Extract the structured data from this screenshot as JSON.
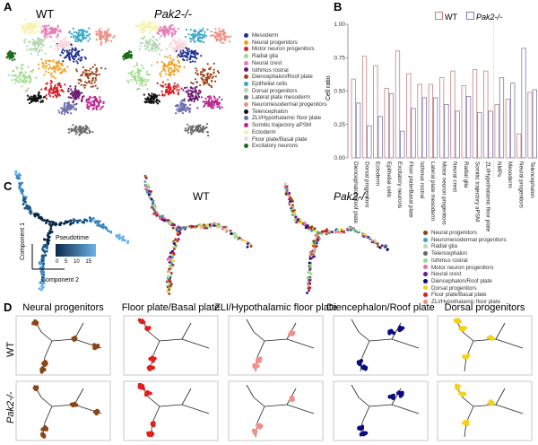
{
  "panels": {
    "a": "A",
    "b": "B",
    "c": "C",
    "d": "D"
  },
  "panelA": {
    "titles": [
      "WT",
      "Pak2-/-"
    ],
    "legend": [
      {
        "label": "Mesoderm",
        "color": "#1f2f8f"
      },
      {
        "label": "Neural progenitors",
        "color": "#f2a024"
      },
      {
        "label": "Motor neuron progenitors",
        "color": "#d62027"
      },
      {
        "label": "Radial glia",
        "color": "#9fdc8a"
      },
      {
        "label": "Neural crest",
        "color": "#e77fb6"
      },
      {
        "label": "Isthmus rostral",
        "color": "#6a1a6b"
      },
      {
        "label": "Diencephalon/Roof plate",
        "color": "#a0461b"
      },
      {
        "label": "Epithelial cells",
        "color": "#3aa7c9"
      },
      {
        "label": "Dorsal progenitors",
        "color": "#b4d8b4"
      },
      {
        "label": "Lateral plate mesoderm",
        "color": "#6b6b6b"
      },
      {
        "label": "Neuromesodermal progenitors",
        "color": "#ee8f86"
      },
      {
        "label": "Telencephalon",
        "color": "#111111"
      },
      {
        "label": "ZLI/Hypothalamic floor plate",
        "color": "#7070b0"
      },
      {
        "label": "Somitic trajectory aPSM",
        "color": "#b8288e"
      },
      {
        "label": "Ectoderm",
        "color": "#f6f2a8"
      },
      {
        "label": "Floor plate/Basal plate",
        "color": "#f9d6dc"
      },
      {
        "label": "Excitatory neurons",
        "color": "#1e6b1e"
      }
    ]
  },
  "chart_data": {
    "type": "bar",
    "title": "",
    "ylabel": "Cell ratio",
    "xlabel": "",
    "ylim": [
      0,
      1
    ],
    "yticks": [
      "0.00",
      "0.25",
      "0.50",
      "0.75",
      "1.00"
    ],
    "legend": [
      "WT",
      "Pak2-/-"
    ],
    "legend_position": "top-left",
    "colors": {
      "WT": "#c98080",
      "Pak2-/-": "#7c7cb4"
    },
    "categories": [
      "Diencephalon/Roof plate",
      "Dorsal progenitors",
      "Ectoderm",
      "Epithelial cells",
      "Excitatory neurons",
      "Floor plate/Basal plate",
      "Isthmus rostral",
      "Lateral plate mesoderm",
      "Motor neuron progenitors",
      "Neural crest",
      "Radial glia",
      "Somitic trajectory aPSM",
      "ZLI/Hypothalamic floor plate",
      "NMPs",
      "Mesoderm",
      "Neural progenitors",
      "Telencephalon"
    ],
    "series": [
      {
        "name": "WT",
        "values": [
          0.59,
          0.76,
          0.69,
          0.52,
          0.8,
          0.63,
          0.55,
          0.55,
          0.6,
          0.65,
          0.54,
          0.66,
          0.65,
          0.4,
          0.44,
          0.18,
          0.49
        ]
      },
      {
        "name": "Pak2-/-",
        "values": [
          0.41,
          0.24,
          0.31,
          0.48,
          0.2,
          0.37,
          0.45,
          0.45,
          0.4,
          0.35,
          0.46,
          0.34,
          0.35,
          0.6,
          0.56,
          0.82,
          0.51
        ]
      }
    ]
  },
  "panelC": {
    "titles": [
      "WT",
      "Pak2-/-"
    ],
    "pseudotime": {
      "title": "Pseudotime",
      "ticks": [
        "0",
        "5",
        "10",
        "15"
      ],
      "axis1": "Component 1",
      "axis2": "Component 2"
    },
    "legend": [
      {
        "label": "Neural progenitors",
        "color": "#8b4513"
      },
      {
        "label": "Neuromesodermal progenitors",
        "color": "#3aa7b9"
      },
      {
        "label": "Radial glia",
        "color": "#b8e0a8"
      },
      {
        "label": "Telencephalon",
        "color": "#666666"
      },
      {
        "label": "Isthmus rostral",
        "color": "#90e090"
      },
      {
        "label": "Motor neuron progenitors",
        "color": "#e36fb0"
      },
      {
        "label": "Neural crest",
        "color": "#6a1a8b"
      },
      {
        "label": "Diencephalon/Roof plate",
        "color": "#0a0a80"
      },
      {
        "label": "Dorsal progenitors",
        "color": "#f2d21a"
      },
      {
        "label": "Floor plate/Basal plate",
        "color": "#d61f1f"
      },
      {
        "label": "ZLI/Hypothalamic floor plate",
        "color": "#ee8f86"
      }
    ]
  },
  "panelD": {
    "rows": [
      "WT",
      "Pak2-/-"
    ],
    "columns": [
      {
        "title": "Neural progenitors",
        "color": "#8b4513"
      },
      {
        "title": "Floor plate/Basal plate",
        "color": "#e01f1f"
      },
      {
        "title": "ZLI/Hypothalamic floor plate",
        "color": "#f0908a"
      },
      {
        "title": "Diencephalon/Roof plate",
        "color": "#0a0a80"
      },
      {
        "title": "Dorsal progenitors",
        "color": "#f2d21a"
      }
    ]
  }
}
